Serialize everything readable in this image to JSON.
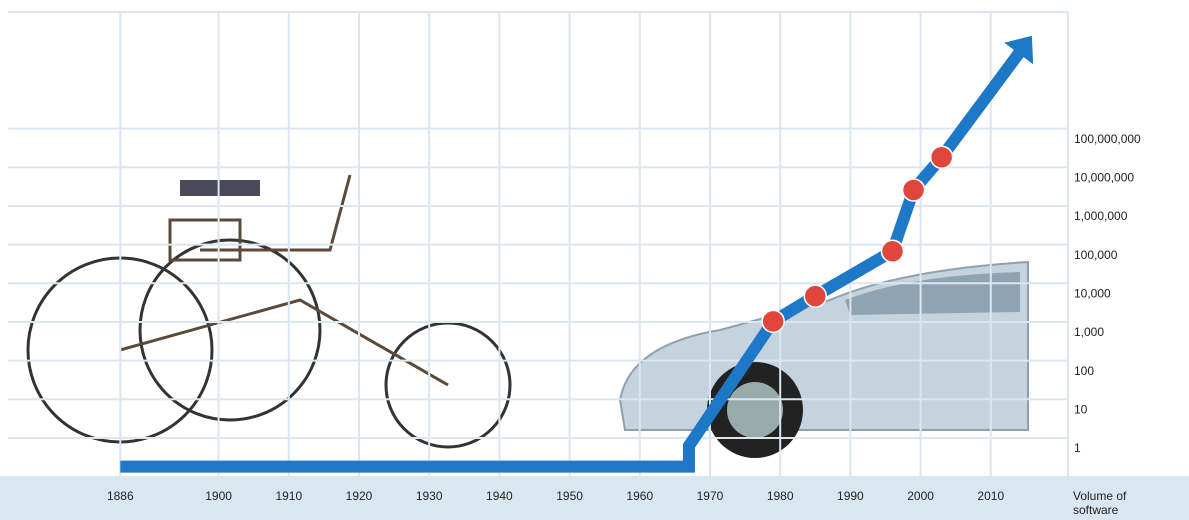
{
  "chart_data": {
    "type": "line",
    "y_label": "Volume of software",
    "log_scale": true,
    "grid": true,
    "xlim": [
      1870,
      2021
    ],
    "xticks": [
      1886,
      1900,
      1910,
      1920,
      1930,
      1940,
      1950,
      1960,
      1970,
      1980,
      1990,
      2000,
      2010
    ],
    "ylim": [
      0.2,
      200000000000
    ],
    "yticks": [
      1,
      10,
      100,
      {
        "value": 1000,
        "label": "1,000"
      },
      {
        "value": 10000,
        "label": "10,000"
      },
      {
        "value": 100000,
        "label": "100,000"
      },
      {
        "value": 1000000,
        "label": "1,000,000"
      },
      {
        "value": 10000000,
        "label": "10,000,000"
      },
      {
        "value": 100000000,
        "label": "100,000,000"
      }
    ],
    "series": [
      {
        "color": "#1e78c8",
        "x": [
          1886,
          1967,
          1967,
          1979,
          1985,
          1996,
          1999,
          2003,
          2015
        ],
        "values": [
          0.35,
          0.35,
          1.2,
          2000,
          9000,
          130000,
          5000000,
          35000000,
          30000000000
        ]
      },
      {
        "color": "#e0463c",
        "marker": "circle",
        "x": [
          1979,
          1985,
          1996,
          1999,
          2003
        ],
        "values": [
          2000,
          9000,
          130000,
          5000000,
          35000000
        ]
      }
    ]
  }
}
